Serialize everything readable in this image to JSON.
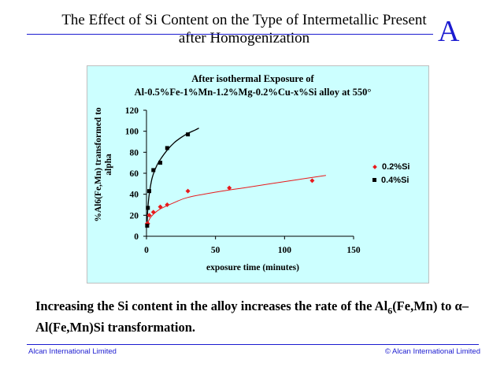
{
  "slide": {
    "title": "The Effect of Si Content on the Type of Intermetallic Present after Homogenization",
    "letter": "A",
    "caption_main": "Increasing the Si content in the alloy increases the rate of the Al",
    "caption_sub": "6",
    "caption_rest": "(Fe,Mn) to α–Al(Fe,Mn)Si transformation.",
    "footer_left": "Alcan International Limited",
    "footer_right": "© Alcan International Limited"
  },
  "colors": {
    "title_blue": "#1b1bd0",
    "plot_bg": "#ccffff",
    "series_red": "#e8191b",
    "series_black": "#000000"
  },
  "chart_data": {
    "type": "scatter",
    "title": "After isothermal Exposure of",
    "subtitle": "Al-0.5%Fe-1%Mn-1.2%Mg-0.2%Cu-x%Si alloy at 550°",
    "xlabel": "exposure time (minutes)",
    "ylabel": "%Al6(Fe,Mn) transformed to alpha",
    "xlim": [
      0,
      150
    ],
    "ylim": [
      0,
      120
    ],
    "xticks": [
      0,
      50,
      100,
      150
    ],
    "yticks": [
      0,
      20,
      40,
      60,
      80,
      100,
      120
    ],
    "legend_position": "right",
    "series": [
      {
        "name": "0.2%Si",
        "marker": "diamond",
        "color": "#e8191b",
        "points": [
          [
            0.5,
            12
          ],
          [
            1,
            12
          ],
          [
            2,
            20
          ],
          [
            5,
            23
          ],
          [
            10,
            28
          ],
          [
            15,
            30
          ],
          [
            30,
            43
          ],
          [
            60,
            46
          ],
          [
            120,
            53
          ]
        ],
        "trendline": [
          [
            0.5,
            10
          ],
          [
            2,
            16
          ],
          [
            5,
            21
          ],
          [
            10,
            26
          ],
          [
            20,
            32
          ],
          [
            30,
            37
          ],
          [
            50,
            42
          ],
          [
            70,
            46
          ],
          [
            90,
            50
          ],
          [
            110,
            54
          ],
          [
            130,
            58
          ]
        ]
      },
      {
        "name": "0.4%Si",
        "marker": "square",
        "color": "#000000",
        "points": [
          [
            0.5,
            10
          ],
          [
            1,
            27
          ],
          [
            2,
            43
          ],
          [
            5,
            63
          ],
          [
            10,
            70
          ],
          [
            15,
            84
          ],
          [
            30,
            97
          ]
        ],
        "trendline": [
          [
            0.5,
            14
          ],
          [
            1,
            27
          ],
          [
            2,
            40
          ],
          [
            4,
            55
          ],
          [
            7,
            66
          ],
          [
            10,
            73
          ],
          [
            15,
            82
          ],
          [
            20,
            89
          ],
          [
            25,
            94
          ],
          [
            30,
            98
          ],
          [
            35,
            101
          ],
          [
            38,
            103
          ]
        ]
      }
    ]
  }
}
